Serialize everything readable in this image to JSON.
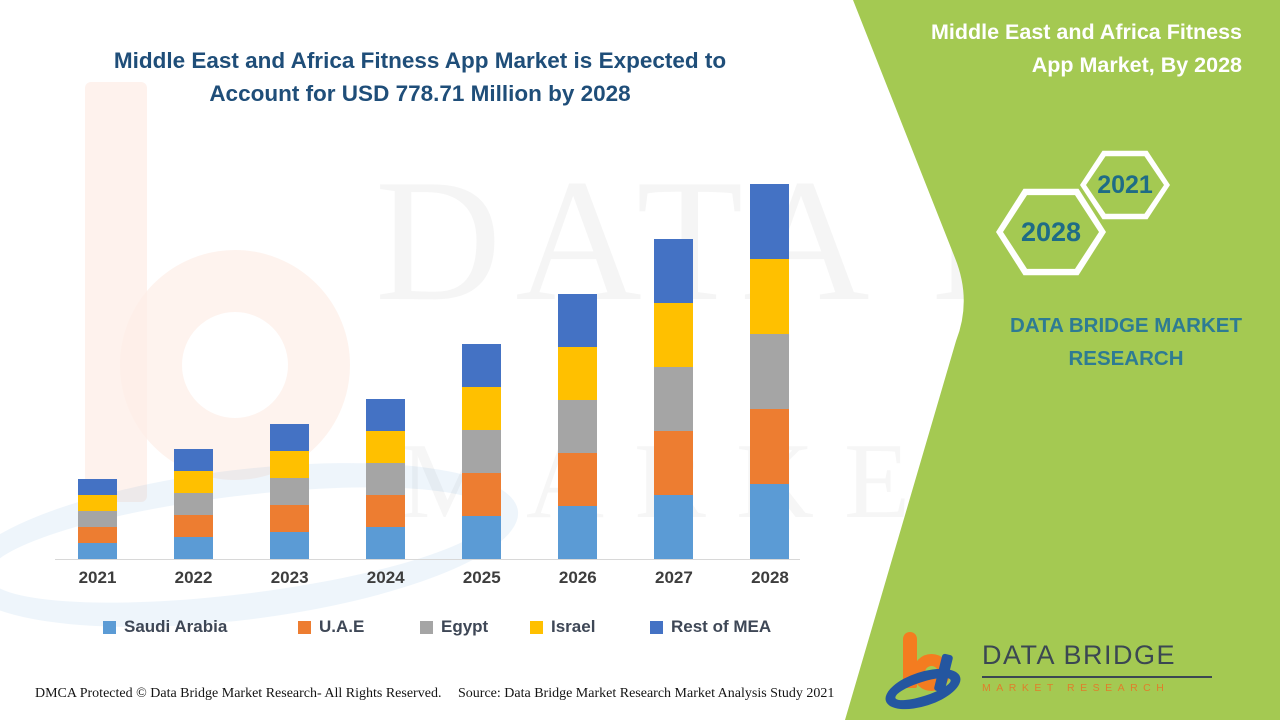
{
  "chart": {
    "title": "Middle East and Africa Fitness App Market is Expected to Account for USD 778.71 Million by 2028"
  },
  "chart_data": {
    "type": "bar",
    "stacked": true,
    "title": "Middle East and Africa Fitness App Market is Expected to Account for USD 778.71 Million by 2028",
    "unit": "USD Million",
    "categories": [
      "2021",
      "2022",
      "2023",
      "2024",
      "2025",
      "2026",
      "2027",
      "2028"
    ],
    "series": [
      {
        "name": "Saudi Arabia",
        "color": "#5B9BD5",
        "values": [
          33.1,
          44.7,
          55.9,
          66.7,
          89.1,
          110.6,
          133.0,
          155.7
        ]
      },
      {
        "name": "U.A.E",
        "color": "#ED7D31",
        "values": [
          33.1,
          44.7,
          55.9,
          66.7,
          89.1,
          110.6,
          133.0,
          155.7
        ]
      },
      {
        "name": "Egypt",
        "color": "#A5A5A5",
        "values": [
          33.1,
          44.7,
          55.9,
          66.7,
          89.1,
          110.6,
          133.0,
          155.7
        ]
      },
      {
        "name": "Israel",
        "color": "#FFC000",
        "values": [
          33.1,
          44.7,
          55.9,
          66.7,
          89.1,
          110.6,
          133.0,
          155.7
        ]
      },
      {
        "name": "Rest of MEA",
        "color": "#4472C4",
        "values": [
          33.1,
          44.7,
          55.9,
          66.7,
          89.1,
          110.6,
          133.0,
          155.7
        ]
      }
    ],
    "totals": [
      165.7,
      223.7,
      279.6,
      333.4,
      445.3,
      553.0,
      664.8,
      778.71
    ],
    "xlabel": "",
    "ylabel": "",
    "ylim": [
      0,
      800
    ],
    "grid": false,
    "legend_position": "bottom",
    "y_axis_visible": false
  },
  "side_panel": {
    "title": "Middle East and Africa Fitness App Market, By 2028",
    "hex_small_year": "2021",
    "hex_large_year": "2028",
    "brand": "DATA BRIDGE MARKET RESEARCH",
    "panel_color": "#a4c952"
  },
  "watermark": {
    "line1": "DATA BRIDGE",
    "line2": "MARKET RESEARCH"
  },
  "logo": {
    "name": "DATA BRIDGE",
    "sub": "MARKET RESEARCH"
  },
  "footer": {
    "left": "DMCA Protected © Data Bridge Market Research- All Rights Reserved.",
    "right": "Source: Data Bridge Market Research Market Analysis Study 2021"
  }
}
